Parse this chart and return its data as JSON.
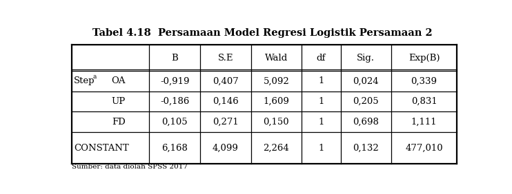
{
  "title": "Tabel 4.18  Persamaan Model Regresi Logistik Persamaan 2",
  "col_headers": [
    "B",
    "S.E",
    "Wald",
    "df",
    "Sig.",
    "Exp(B)"
  ],
  "rows": [
    {
      "col1": "Step",
      "sup": "a",
      "col2": "OA",
      "B": "-0,919",
      "SE": "0,407",
      "Wald": "5,092",
      "df": "1",
      "Sig": "0,024",
      "ExpB": "0,339"
    },
    {
      "col1": "",
      "sup": "",
      "col2": "UP",
      "B": "-0,186",
      "SE": "0,146",
      "Wald": "1,609",
      "df": "1",
      "Sig": "0,205",
      "ExpB": "0,831"
    },
    {
      "col1": "",
      "sup": "",
      "col2": "FD",
      "B": "0,105",
      "SE": "0,271",
      "Wald": "0,150",
      "df": "1",
      "Sig": "0,698",
      "ExpB": "1,111"
    },
    {
      "col1": "CONSTANT",
      "sup": "",
      "col2": "",
      "B": "6,168",
      "SE": "4,099",
      "Wald": "2,264",
      "df": "1",
      "Sig": "0,132",
      "ExpB": "477,010"
    }
  ],
  "footnote": "Sumber: data diolah SPSS 2017",
  "title_fontsize": 10.5,
  "cell_fontsize": 9.5,
  "header_fontsize": 9.5,
  "bg_color": "white"
}
